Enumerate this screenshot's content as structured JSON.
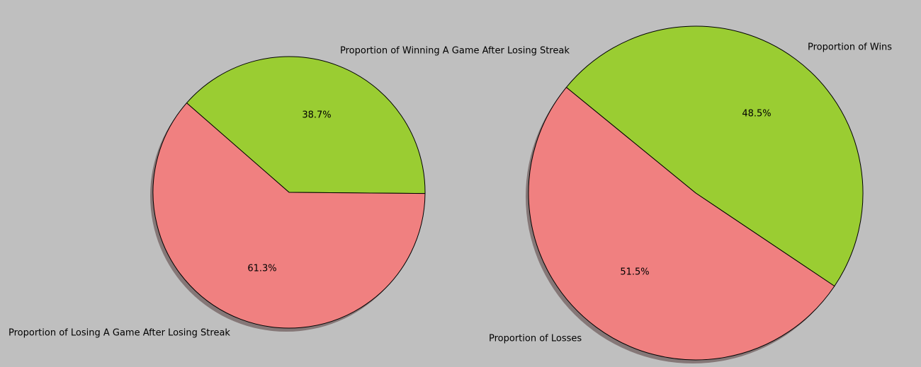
{
  "chart_data": [
    {
      "type": "pie",
      "title": "",
      "shadow": true,
      "slices": [
        {
          "label": "Proportion of Winning A Game After Losing Streak",
          "value": 38.7,
          "pct_label": "38.7%",
          "color": "#9acd32"
        },
        {
          "label": "Proportion of Losing A Game After Losing Streak",
          "value": 61.3,
          "pct_label": "61.3%",
          "color": "#f08080"
        }
      ]
    },
    {
      "type": "pie",
      "title": "",
      "shadow": true,
      "slices": [
        {
          "label": "Proportion of Wins",
          "value": 48.5,
          "pct_label": "48.5%",
          "color": "#9acd32"
        },
        {
          "label": "Proportion of Losses",
          "value": 51.5,
          "pct_label": "51.5%",
          "color": "#f08080"
        }
      ]
    }
  ],
  "colors": {
    "background": "#bfbfbf",
    "edge": "#000000",
    "shadow": "#7a6a6a"
  }
}
